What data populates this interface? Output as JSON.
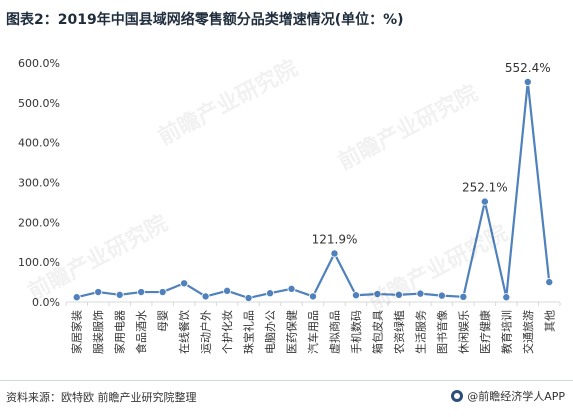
{
  "title": "图表2：2019年中国县域网络零售额分品类增速情况(单位：%)",
  "footer": {
    "source": "资料来源：欧特欧 前瞻产业研究院整理",
    "brand": "@前瞻经济学人APP"
  },
  "watermark": "前瞻产业研究院",
  "colors": {
    "line": "#4f81bd",
    "marker": "#4f81bd",
    "axis": "#d9d9d9",
    "text": "#333333"
  },
  "chart_data": {
    "type": "line",
    "title": "图表2：2019年中国县域网络零售额分品类增速情况(单位：%)",
    "xlabel": "",
    "ylabel": "",
    "ylim": [
      0,
      600
    ],
    "yticks": [
      "0.0%",
      "100.0%",
      "200.0%",
      "300.0%",
      "400.0%",
      "500.0%",
      "600.0%"
    ],
    "grid": false,
    "legend": "none",
    "categories": [
      "家居家装",
      "服装服饰",
      "家用电器",
      "食品酒水",
      "母婴",
      "在线餐饮",
      "运动户外",
      "个护化妆",
      "珠宝礼品",
      "电脑办公",
      "医药保健",
      "汽车用品",
      "虚拟商品",
      "手机数码",
      "箱包皮具",
      "农资绿植",
      "生活服务",
      "图书音像",
      "休闲娱乐",
      "医疗健康",
      "教育培训",
      "交通旅游",
      "其他"
    ],
    "values": [
      12,
      25,
      18,
      25,
      25,
      47,
      14,
      28,
      10,
      22,
      33,
      14,
      121.9,
      17,
      20,
      18,
      21,
      16,
      13,
      252.1,
      12,
      552.4,
      50
    ],
    "annotations": [
      {
        "index": 12,
        "label": "121.9%"
      },
      {
        "index": 19,
        "label": "252.1%"
      },
      {
        "index": 21,
        "label": "552.4%"
      }
    ]
  }
}
